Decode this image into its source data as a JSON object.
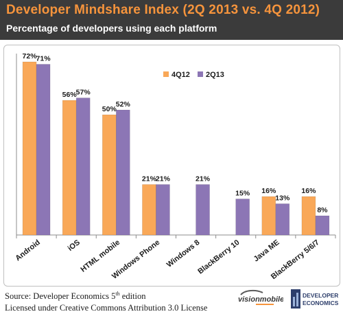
{
  "header": {
    "title": "Developer Mindshare Index (2Q 2013 vs. 4Q 2012)",
    "subtitle": "Percentage of developers using each platform"
  },
  "footer": {
    "source_prefix": "Source: Developer Economics 5",
    "source_sup": "th",
    "source_suffix": " edition",
    "license": "Licensed under Creative Commons Attribution 3.0 License"
  },
  "logos": {
    "visionmobile": "visionmobile",
    "developer_economics": "DEVELOPER ECONOMICS"
  },
  "colors": {
    "header_bg": "#3b3b3b",
    "title": "#f6943c",
    "series_4q12": "#f9a858",
    "series_2q13": "#8c76b5"
  },
  "chart_data": {
    "type": "bar",
    "title": "Developer Mindshare Index (2Q 2013 vs. 4Q 2012)",
    "subtitle": "Percentage of developers using each platform",
    "xlabel": "",
    "ylabel": "",
    "ylim": [
      0,
      75
    ],
    "grid": false,
    "legend_position": "top-right",
    "categories": [
      "Android",
      "iOS",
      "HTML mobile",
      "Windows Phone",
      "Windows 8",
      "BlackBerry 10",
      "Java ME",
      "BlackBerry 5/6/7"
    ],
    "series": [
      {
        "name": "4Q12",
        "color": "#f9a858",
        "values": [
          72,
          56,
          50,
          21,
          null,
          null,
          16,
          16
        ],
        "labels": [
          "72%",
          "56%",
          "50%",
          "21%",
          "",
          "",
          "16%",
          "16%"
        ]
      },
      {
        "name": "2Q13",
        "color": "#8c76b5",
        "values": [
          71,
          57,
          52,
          21,
          21,
          15,
          13,
          8
        ],
        "labels": [
          "71%",
          "57%",
          "52%",
          "21%",
          "21%",
          "15%",
          "13%",
          "8%"
        ]
      }
    ]
  }
}
